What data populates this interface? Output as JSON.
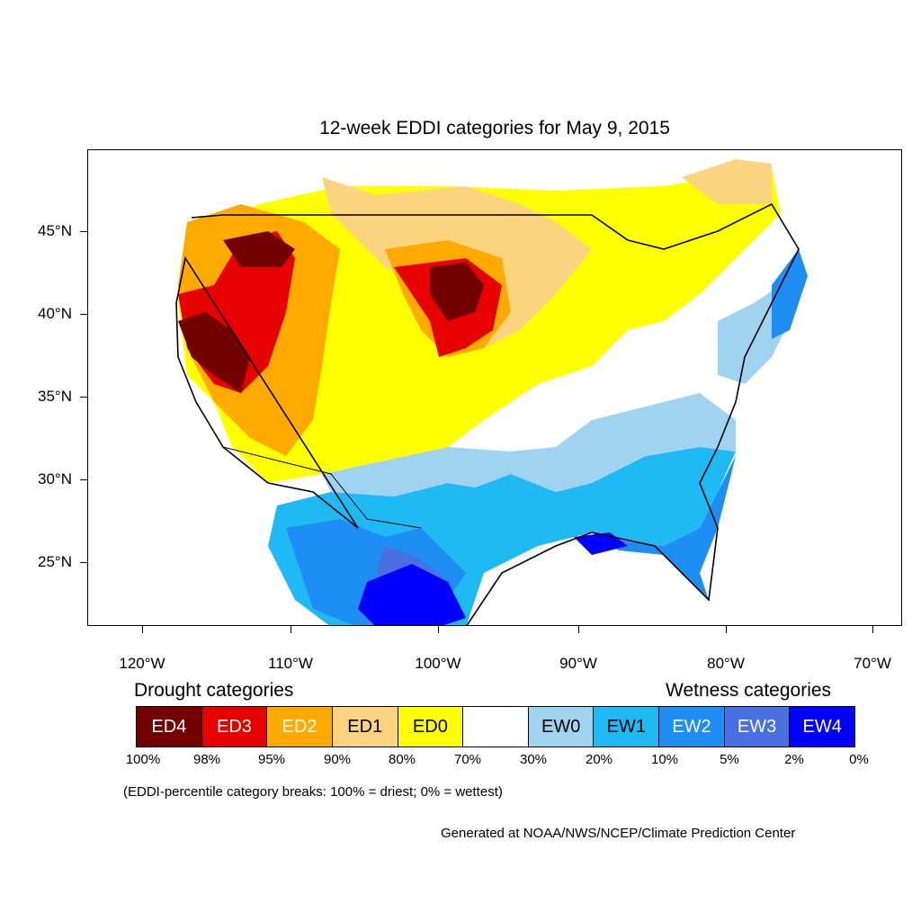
{
  "title": "12-week EDDI categories for May 9, 2015",
  "lat_labels": [
    "45°N",
    "40°N",
    "35°N",
    "30°N",
    "25°N"
  ],
  "lon_labels": [
    "120°W",
    "110°W",
    "100°W",
    "90°W",
    "80°W",
    "70°W"
  ],
  "legend": {
    "drought_heading": "Drought categories",
    "wetness_heading": "Wetness categories",
    "categories": [
      {
        "label": "ED4",
        "color": "#730000",
        "text_color": "#ffffff"
      },
      {
        "label": "ED3",
        "color": "#e60000",
        "text_color": "#ffffff"
      },
      {
        "label": "ED2",
        "color": "#ffaa00",
        "text_color": "#ffffff"
      },
      {
        "label": "ED1",
        "color": "#fcd37f",
        "text_color": "#000000"
      },
      {
        "label": "ED0",
        "color": "#ffff00",
        "text_color": "#000000"
      },
      {
        "label": "",
        "color": "#ffffff",
        "text_color": "#000000"
      },
      {
        "label": "EW0",
        "color": "#9fd3f0",
        "text_color": "#000000"
      },
      {
        "label": "EW1",
        "color": "#1fb9f4",
        "text_color": "#000000"
      },
      {
        "label": "EW2",
        "color": "#1e8ef5",
        "text_color": "#ffffff"
      },
      {
        "label": "EW3",
        "color": "#4a6fe0",
        "text_color": "#ffffff"
      },
      {
        "label": "EW4",
        "color": "#0000ff",
        "text_color": "#ffffff"
      }
    ],
    "breaks": [
      "100%",
      "98%",
      "95%",
      "90%",
      "80%",
      "70%",
      "30%",
      "20%",
      "10%",
      "5%",
      "2%",
      "0%"
    ]
  },
  "breaks_note": "(EDDI-percentile category breaks: 100% = driest; 0% = wettest)",
  "credit": "Generated at NOAA/NWS/NCEP/Climate Prediction Center"
}
